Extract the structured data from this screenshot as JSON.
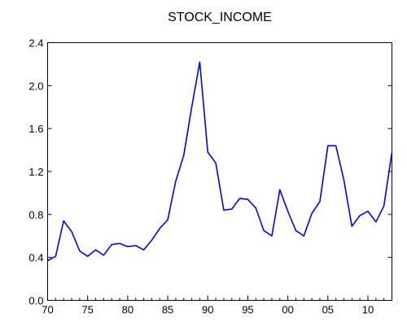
{
  "chart_data": {
    "type": "line",
    "title": "STOCK_INCOME",
    "xlabel": "",
    "ylabel": "",
    "xlim": [
      1970,
      2013
    ],
    "ylim": [
      0.0,
      2.4
    ],
    "x_ticks": [
      {
        "value": 1970,
        "label": "70"
      },
      {
        "value": 1975,
        "label": "75"
      },
      {
        "value": 1980,
        "label": "80"
      },
      {
        "value": 1985,
        "label": "85"
      },
      {
        "value": 1990,
        "label": "90"
      },
      {
        "value": 1995,
        "label": "95"
      },
      {
        "value": 2000,
        "label": "00"
      },
      {
        "value": 2005,
        "label": "05"
      },
      {
        "value": 2010,
        "label": "10"
      }
    ],
    "y_ticks": [
      {
        "value": 0.0,
        "label": "0.0"
      },
      {
        "value": 0.4,
        "label": "0.4"
      },
      {
        "value": 0.8,
        "label": "0.8"
      },
      {
        "value": 1.2,
        "label": "1.2"
      },
      {
        "value": 1.6,
        "label": "1.6"
      },
      {
        "value": 2.0,
        "label": "2.0"
      },
      {
        "value": 2.4,
        "label": "2.4"
      }
    ],
    "grid": false,
    "line_color": "#0000ff",
    "series": [
      {
        "x": [
          1970,
          1971,
          1972,
          1973,
          1974,
          1975,
          1976,
          1977,
          1978,
          1979,
          1980,
          1981,
          1982,
          1983,
          1984,
          1985,
          1986,
          1987,
          1988,
          1989,
          1990,
          1991,
          1992,
          1993,
          1994,
          1995,
          1996,
          1997,
          1998,
          1999,
          2000,
          2001,
          2002,
          2003,
          2004,
          2005,
          2006,
          2007,
          2008,
          2009,
          2010,
          2011,
          2012,
          2013
        ],
        "values": [
          0.37,
          0.41,
          0.74,
          0.64,
          0.46,
          0.41,
          0.47,
          0.42,
          0.52,
          0.53,
          0.5,
          0.51,
          0.47,
          0.56,
          0.67,
          0.75,
          1.11,
          1.35,
          1.8,
          2.22,
          1.38,
          1.28,
          0.84,
          0.85,
          0.95,
          0.94,
          0.86,
          0.65,
          0.6,
          1.03,
          0.83,
          0.65,
          0.6,
          0.81,
          0.92,
          1.44,
          1.44,
          1.12,
          0.69,
          0.79,
          0.83,
          0.73,
          0.88,
          1.38
        ]
      }
    ]
  }
}
